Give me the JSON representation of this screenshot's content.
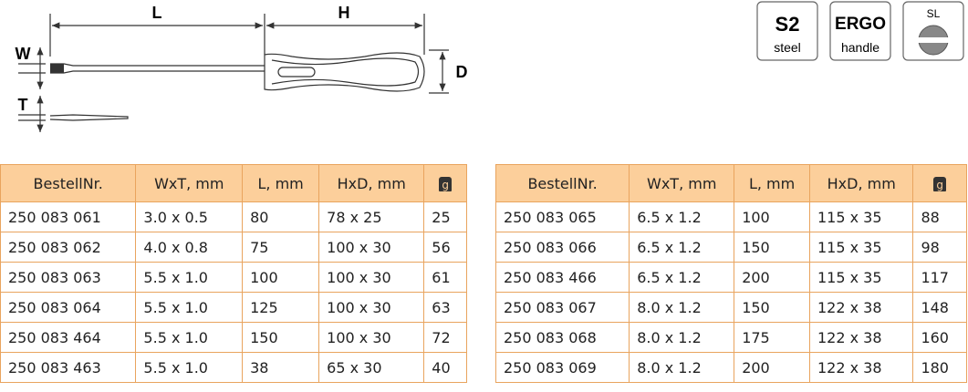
{
  "diagram": {
    "labels": {
      "L": "L",
      "H": "H",
      "W": "W",
      "T": "T",
      "D": "D"
    }
  },
  "badges": [
    {
      "big": "S2",
      "small": "steel"
    },
    {
      "big": "ERGO",
      "small": "handle"
    },
    {
      "big": "SL"
    }
  ],
  "tables": [
    {
      "header": [
        "BestellNr.",
        "WxT, mm",
        "L, mm",
        "HxD, mm",
        "g"
      ],
      "rows": [
        [
          "250 083 061",
          "3.0 x 0.5",
          80,
          "78 x 25",
          25
        ],
        [
          "250 083 062",
          "4.0 x 0.8",
          75,
          "100 x 30",
          56
        ],
        [
          "250 083 063",
          "5.5 x 1.0",
          100,
          "100 x 30",
          61
        ],
        [
          "250 083 064",
          "5.5 x 1.0",
          125,
          "100 x 30",
          63
        ],
        [
          "250 083 464",
          "5.5 x 1.0",
          150,
          "100 x 30",
          72
        ],
        [
          "250 083 463",
          "5.5 x 1.0",
          38,
          "65 x 30",
          40
        ]
      ]
    },
    {
      "header": [
        "BestellNr.",
        "WxT, mm",
        "L, mm",
        "HxD, mm",
        "g"
      ],
      "rows": [
        [
          "250 083 065",
          "6.5 x 1.2",
          100,
          "115 x 35",
          88
        ],
        [
          "250 083 066",
          "6.5 x 1.2",
          150,
          "115 x 35",
          98
        ],
        [
          "250 083 466",
          "6.5 x 1.2",
          200,
          "115 x 35",
          117
        ],
        [
          "250 083 067",
          "8.0 x 1.2",
          150,
          "122 x 38",
          148
        ],
        [
          "250 083 068",
          "8.0 x 1.2",
          175,
          "122 x 38",
          160
        ],
        [
          "250 083 069",
          "8.0 x 1.2",
          200,
          "122 x 38",
          180
        ]
      ]
    }
  ]
}
